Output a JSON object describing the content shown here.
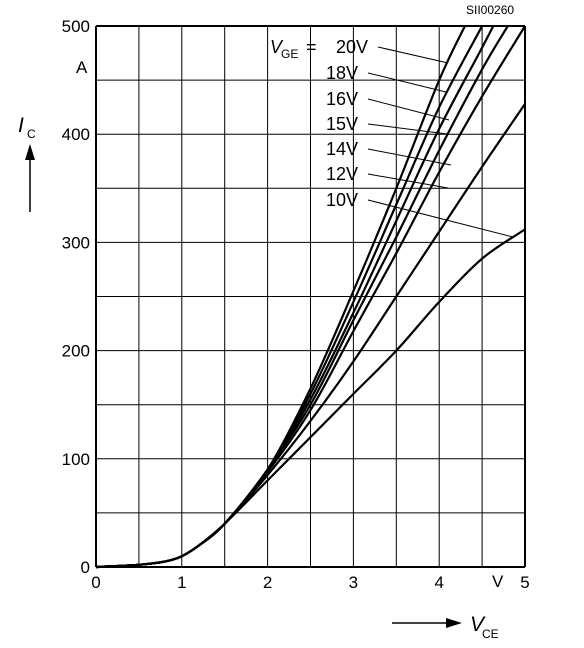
{
  "chart_data": {
    "type": "line",
    "code_label": "SII00260",
    "y_axis": {
      "symbol": "I",
      "subscript": "C",
      "unit": "A",
      "ticks": [
        "0",
        "100",
        "200",
        "300",
        "400",
        "500"
      ],
      "range": [
        0,
        500
      ]
    },
    "x_axis": {
      "symbol": "V",
      "subscript": "CE",
      "unit": "V",
      "ticks": [
        "0",
        "1",
        "2",
        "3",
        "4",
        "5"
      ],
      "range": [
        0,
        5
      ]
    },
    "legend_symbol": "V",
    "legend_subscript": "GE",
    "legend_equals": "=",
    "series": [
      {
        "name": "20V",
        "x": [
          0,
          0.5,
          0.8,
          1.0,
          1.2,
          1.5,
          2.0,
          2.5,
          3.0,
          3.5,
          4.0,
          4.3
        ],
        "y": [
          0,
          2,
          5,
          10,
          20,
          40,
          90,
          165,
          255,
          350,
          450,
          500
        ]
      },
      {
        "name": "18V",
        "x": [
          0,
          0.5,
          0.8,
          1.0,
          1.2,
          1.5,
          2.0,
          2.5,
          3.0,
          3.5,
          4.0,
          4.5
        ],
        "y": [
          0,
          2,
          5,
          10,
          20,
          40,
          90,
          160,
          245,
          335,
          425,
          500
        ]
      },
      {
        "name": "16V",
        "x": [
          0,
          0.5,
          0.8,
          1.0,
          1.2,
          1.5,
          2.0,
          2.5,
          3.0,
          3.5,
          4.0,
          4.5,
          4.63
        ],
        "y": [
          0,
          2,
          5,
          10,
          20,
          40,
          90,
          155,
          235,
          320,
          405,
          480,
          500
        ]
      },
      {
        "name": "15V",
        "x": [
          0,
          0.5,
          0.8,
          1.0,
          1.2,
          1.5,
          2.0,
          2.5,
          3.0,
          3.5,
          4.0,
          4.5,
          4.8
        ],
        "y": [
          0,
          2,
          5,
          10,
          20,
          40,
          90,
          150,
          228,
          305,
          385,
          460,
          500
        ]
      },
      {
        "name": "14V",
        "x": [
          0,
          0.5,
          0.8,
          1.0,
          1.2,
          1.5,
          2.0,
          2.5,
          3.0,
          3.5,
          4.0,
          4.5,
          5.0
        ],
        "y": [
          0,
          2,
          5,
          10,
          20,
          40,
          88,
          145,
          218,
          290,
          365,
          435,
          500
        ]
      },
      {
        "name": "12V",
        "x": [
          0,
          0.5,
          0.8,
          1.0,
          1.2,
          1.5,
          2.0,
          2.5,
          3.0,
          3.5,
          4.0,
          4.5,
          5.0
        ],
        "y": [
          0,
          2,
          5,
          10,
          20,
          40,
          85,
          135,
          190,
          250,
          310,
          370,
          428
        ]
      },
      {
        "name": "10V",
        "x": [
          0,
          0.5,
          0.8,
          1.0,
          1.2,
          1.5,
          2.0,
          2.5,
          3.0,
          3.5,
          4.0,
          4.5,
          5.0
        ],
        "y": [
          0,
          2,
          5,
          10,
          20,
          40,
          80,
          120,
          160,
          200,
          245,
          285,
          312
        ]
      }
    ],
    "grid": true,
    "legend_position": "top-right"
  }
}
